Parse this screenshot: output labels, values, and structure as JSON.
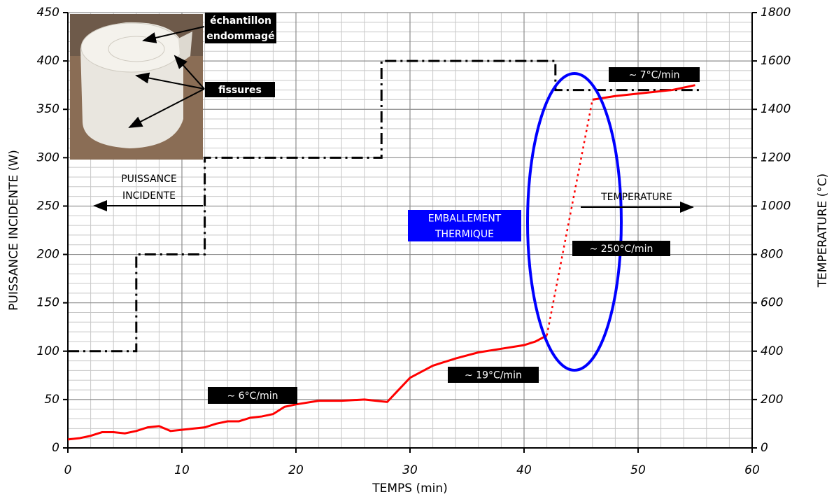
{
  "chart_data": {
    "type": "line",
    "x_label": "TEMPS (min)",
    "y_label": "PUISSANCE INCIDENTE (W)",
    "y2_label": "TEMPERATURE (°C)",
    "xlim": [
      0,
      60
    ],
    "xticks": [
      0,
      10,
      20,
      30,
      40,
      50,
      60
    ],
    "ylim": [
      0,
      450
    ],
    "yticks": [
      0,
      50,
      100,
      150,
      200,
      250,
      300,
      350,
      400,
      450
    ],
    "y2lim": [
      0,
      1800
    ],
    "y2ticks": [
      0,
      200,
      400,
      600,
      800,
      1000,
      1200,
      1400,
      1600,
      1800
    ],
    "grid": true,
    "series": [
      {
        "name": "PUISSANCE INCIDENTE",
        "color": "#000000",
        "style": "dashdot",
        "x": [
          0,
          6,
          6,
          12,
          12,
          27.5,
          27.5,
          42.75,
          42.75,
          55.5
        ],
        "values": [
          100,
          100,
          200,
          200,
          300,
          300,
          400,
          400,
          370,
          370
        ]
      },
      {
        "name": "TEMPERATURE",
        "color": "#ff0000",
        "axis": "y2",
        "gap_style": "dotted",
        "x": [
          0,
          1,
          2,
          3,
          4,
          5,
          6,
          7,
          8,
          9,
          10,
          11,
          12,
          13,
          14,
          15,
          16,
          17,
          18,
          19,
          20,
          22,
          24,
          26,
          27,
          28,
          29,
          30,
          32,
          34,
          36,
          38,
          40,
          41,
          42,
          null,
          46,
          48,
          50,
          53,
          55
        ],
        "values": [
          35,
          40,
          50,
          65,
          65,
          60,
          70,
          85,
          90,
          70,
          75,
          80,
          85,
          100,
          110,
          110,
          125,
          130,
          140,
          170,
          180,
          195,
          195,
          200,
          195,
          190,
          240,
          290,
          340,
          370,
          395,
          410,
          425,
          440,
          465,
          null,
          1440,
          1455,
          1465,
          1480,
          1500
        ]
      }
    ],
    "annotations": [
      [
        "échantillon",
        "endommagé"
      ],
      [
        "fissures"
      ],
      [
        "EMBALLEMENT",
        "THERMIQUE"
      ],
      [
        "∼ 6°C/min"
      ],
      [
        "∼ 19°C/min"
      ],
      [
        "∼ 250°C/min"
      ],
      [
        "∼ 7°C/min"
      ]
    ]
  }
}
